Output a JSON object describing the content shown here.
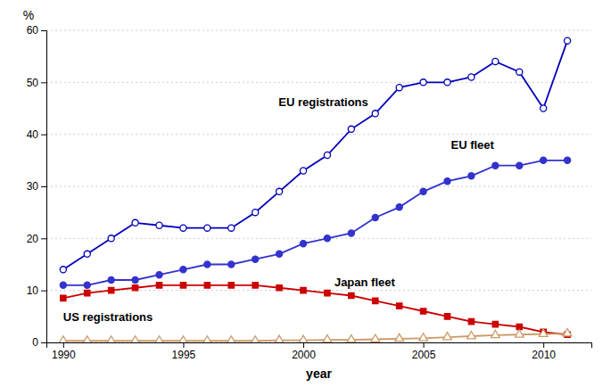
{
  "chart_data": {
    "type": "line",
    "xlabel": "year",
    "ylabel": "%",
    "x": [
      1990,
      1991,
      1992,
      1993,
      1994,
      1995,
      1996,
      1997,
      1998,
      1999,
      2000,
      2001,
      2002,
      2003,
      2004,
      2005,
      2006,
      2007,
      2008,
      2009,
      2010,
      2011
    ],
    "xlim": [
      1989.3,
      2012
    ],
    "xticks": [
      1990,
      1995,
      2000,
      2005,
      2010
    ],
    "ylim": [
      0,
      60
    ],
    "yticks": [
      0,
      10,
      20,
      30,
      40,
      50,
      60
    ],
    "grid": true,
    "series": [
      {
        "name": "EU registrations",
        "color": "#0000bb",
        "marker": "circle-open",
        "values": [
          14,
          17,
          20,
          23,
          22.5,
          22,
          22,
          22,
          25,
          29,
          33,
          36,
          41,
          44,
          49,
          50,
          50,
          51,
          54,
          52,
          45,
          58
        ]
      },
      {
        "name": "EU fleet",
        "color": "#3333cc",
        "marker": "circle",
        "values": [
          11,
          11,
          12,
          12,
          13,
          14,
          15,
          15,
          16,
          17,
          19,
          20,
          21,
          24,
          26,
          29,
          31,
          32,
          34,
          34,
          35,
          35
        ]
      },
      {
        "name": "Japan fleet",
        "color": "#cc0000",
        "marker": "square",
        "values": [
          8.5,
          9.5,
          10,
          10.5,
          11,
          11,
          11,
          11,
          11,
          10.5,
          10,
          9.5,
          9,
          8,
          7,
          6,
          5,
          4,
          3.5,
          3,
          2,
          1.5
        ]
      },
      {
        "name": "US registrations",
        "color": "#cc9966",
        "marker": "triangle-open",
        "values": [
          0.3,
          0.3,
          0.3,
          0.3,
          0.3,
          0.3,
          0.3,
          0.3,
          0.3,
          0.4,
          0.4,
          0.5,
          0.5,
          0.6,
          0.7,
          0.8,
          1.0,
          1.2,
          1.4,
          1.5,
          1.6,
          1.7
        ]
      }
    ]
  }
}
